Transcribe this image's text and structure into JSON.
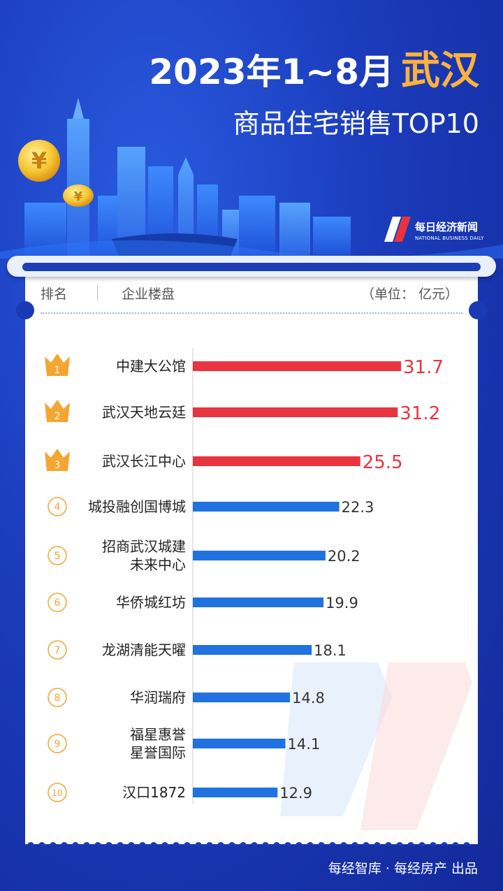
{
  "header": {
    "title_prefix": "2023年1~8月",
    "title_city": "武汉",
    "subtitle": "商品住宅销售TOP10"
  },
  "brand": {
    "name_cn": "每日经济新闻",
    "name_en": "NATIONAL BUSINESS DAILY"
  },
  "table_header": {
    "rank": "排名",
    "project": "企业楼盘",
    "unit": "（单位： 亿元）"
  },
  "footer": "每经智库 · 每经房产 出品",
  "colors": {
    "background": "#1636b0",
    "top3_bar": "#e8343e",
    "other_bar": "#1f72e0",
    "crown": "#f5a531",
    "city_accent": "#ffb23a"
  },
  "chart_data": {
    "type": "bar",
    "orientation": "horizontal",
    "title": "",
    "xlabel": "",
    "ylabel": "",
    "unit": "亿元",
    "xlim": [
      0,
      31.7
    ],
    "grid": false,
    "legend": "none",
    "ranks": [
      "1",
      "2",
      "3",
      "4",
      "5",
      "6",
      "7",
      "8",
      "9",
      "10"
    ],
    "categories": [
      [
        "中建大公馆"
      ],
      [
        "武汉天地云廷"
      ],
      [
        "武汉长江中心"
      ],
      [
        "城投融创国博城"
      ],
      [
        "招商武汉城建",
        "未来中心"
      ],
      [
        "华侨城红坊"
      ],
      [
        "龙湖清能天曜"
      ],
      [
        "华润瑞府"
      ],
      [
        "福星惠誉",
        "星誉国际"
      ],
      [
        "汉口1872"
      ]
    ],
    "values": [
      31.7,
      31.2,
      25.5,
      22.3,
      20.2,
      19.9,
      18.1,
      14.8,
      14.1,
      12.9
    ],
    "value_labels": [
      "31.7",
      "31.2",
      "25.5",
      "22.3",
      "20.2",
      "19.9",
      "18.1",
      "14.8",
      "14.1",
      "12.9"
    ]
  }
}
